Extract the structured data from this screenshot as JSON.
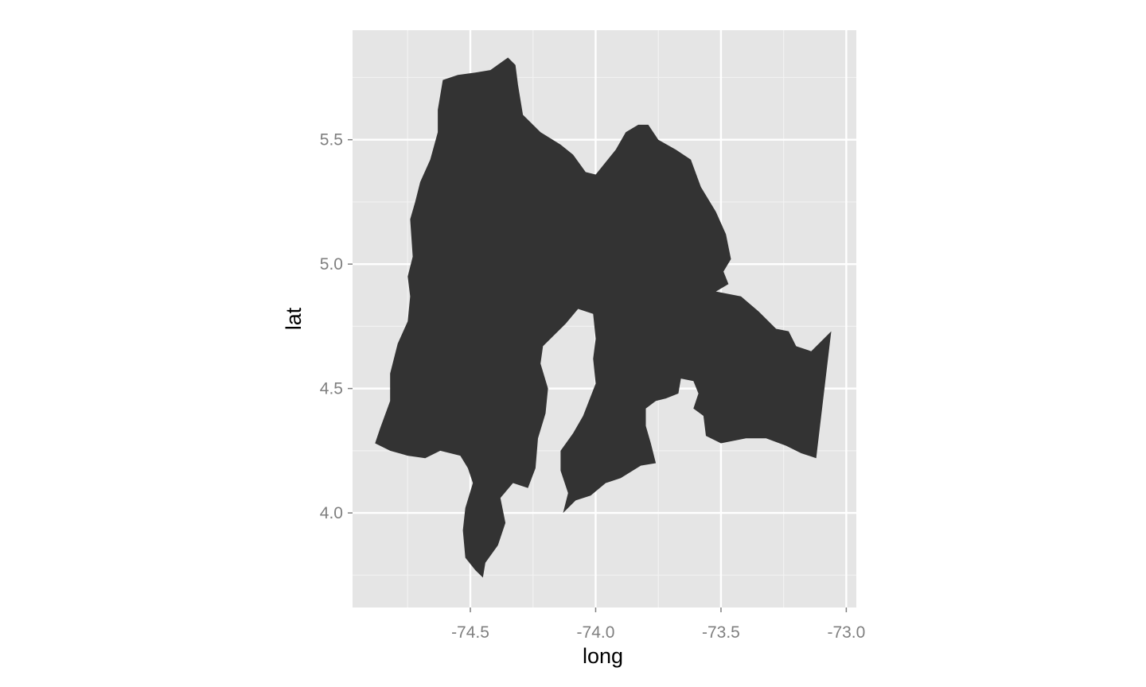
{
  "chart_data": {
    "type": "map",
    "xlabel": "long",
    "ylabel": "lat",
    "xlim": [
      -74.97,
      -72.96
    ],
    "ylim": [
      3.62,
      5.94
    ],
    "x_ticks": [
      {
        "value": -74.5,
        "label": "-74.5"
      },
      {
        "value": -74.0,
        "label": "-74.0"
      },
      {
        "value": -73.5,
        "label": "-73.5"
      },
      {
        "value": -73.0,
        "label": "-73.0"
      }
    ],
    "y_ticks": [
      {
        "value": 4.0,
        "label": "4.0"
      },
      {
        "value": 4.5,
        "label": "4.5"
      },
      {
        "value": 5.0,
        "label": "5.0"
      },
      {
        "value": 5.5,
        "label": "5.5"
      }
    ],
    "x_minor": [
      -74.75,
      -74.25,
      -73.75,
      -73.25
    ],
    "y_minor": [
      3.75,
      4.25,
      4.75,
      5.25,
      5.75
    ],
    "grid": true,
    "colors": {
      "panel": "#e5e5e5",
      "grid_major": "#ffffff",
      "grid_minor": "#f2f2f2",
      "fill": "#333333"
    },
    "region": {
      "polygon": [
        [
          -74.35,
          5.83
        ],
        [
          -74.32,
          5.8
        ],
        [
          -74.31,
          5.72
        ],
        [
          -74.29,
          5.6
        ],
        [
          -74.22,
          5.53
        ],
        [
          -74.14,
          5.48
        ],
        [
          -74.09,
          5.44
        ],
        [
          -74.04,
          5.37
        ],
        [
          -74.0,
          5.36
        ],
        [
          -73.96,
          5.41
        ],
        [
          -73.92,
          5.46
        ],
        [
          -73.88,
          5.53
        ],
        [
          -73.83,
          5.56
        ],
        [
          -73.79,
          5.56
        ],
        [
          -73.75,
          5.5
        ],
        [
          -73.68,
          5.46
        ],
        [
          -73.62,
          5.42
        ],
        [
          -73.58,
          5.31
        ],
        [
          -73.52,
          5.21
        ],
        [
          -73.48,
          5.12
        ],
        [
          -73.46,
          5.02
        ],
        [
          -73.49,
          4.97
        ],
        [
          -73.47,
          4.92
        ],
        [
          -73.52,
          4.89
        ],
        [
          -73.42,
          4.87
        ],
        [
          -73.35,
          4.81
        ],
        [
          -73.28,
          4.74
        ],
        [
          -73.23,
          4.73
        ],
        [
          -73.2,
          4.67
        ],
        [
          -73.14,
          4.65
        ],
        [
          -73.06,
          4.73
        ],
        [
          -73.12,
          4.22
        ],
        [
          -73.18,
          4.24
        ],
        [
          -73.24,
          4.27
        ],
        [
          -73.32,
          4.3
        ],
        [
          -73.4,
          4.3
        ],
        [
          -73.5,
          4.28
        ],
        [
          -73.56,
          4.31
        ],
        [
          -73.57,
          4.39
        ],
        [
          -73.61,
          4.42
        ],
        [
          -73.59,
          4.48
        ],
        [
          -73.61,
          4.53
        ],
        [
          -73.66,
          4.54
        ],
        [
          -73.67,
          4.48
        ],
        [
          -73.72,
          4.46
        ],
        [
          -73.76,
          4.45
        ],
        [
          -73.8,
          4.42
        ],
        [
          -73.8,
          4.35
        ],
        [
          -73.78,
          4.28
        ],
        [
          -73.76,
          4.2
        ],
        [
          -73.82,
          4.19
        ],
        [
          -73.9,
          4.14
        ],
        [
          -73.96,
          4.12
        ],
        [
          -74.02,
          4.07
        ],
        [
          -74.08,
          4.05
        ],
        [
          -74.13,
          4.0
        ],
        [
          -74.11,
          4.08
        ],
        [
          -74.14,
          4.17
        ],
        [
          -74.14,
          4.25
        ],
        [
          -74.09,
          4.32
        ],
        [
          -74.05,
          4.39
        ],
        [
          -74.0,
          4.52
        ],
        [
          -74.01,
          4.62
        ],
        [
          -74.0,
          4.7
        ],
        [
          -74.01,
          4.8
        ],
        [
          -74.07,
          4.82
        ],
        [
          -74.12,
          4.76
        ],
        [
          -74.21,
          4.67
        ],
        [
          -74.22,
          4.6
        ],
        [
          -74.19,
          4.5
        ],
        [
          -74.2,
          4.4
        ],
        [
          -74.23,
          4.3
        ],
        [
          -74.24,
          4.18
        ],
        [
          -74.27,
          4.1
        ],
        [
          -74.33,
          4.12
        ],
        [
          -74.38,
          4.06
        ],
        [
          -74.36,
          3.96
        ],
        [
          -74.39,
          3.87
        ],
        [
          -74.44,
          3.8
        ],
        [
          -74.45,
          3.74
        ],
        [
          -74.48,
          3.77
        ],
        [
          -74.52,
          3.82
        ],
        [
          -74.53,
          3.93
        ],
        [
          -74.52,
          4.02
        ],
        [
          -74.49,
          4.12
        ],
        [
          -74.51,
          4.18
        ],
        [
          -74.54,
          4.23
        ],
        [
          -74.62,
          4.25
        ],
        [
          -74.68,
          4.22
        ],
        [
          -74.75,
          4.23
        ],
        [
          -74.82,
          4.25
        ],
        [
          -74.88,
          4.28
        ],
        [
          -74.86,
          4.34
        ],
        [
          -74.82,
          4.45
        ],
        [
          -74.82,
          4.56
        ],
        [
          -74.79,
          4.68
        ],
        [
          -74.75,
          4.77
        ],
        [
          -74.74,
          4.87
        ],
        [
          -74.75,
          4.95
        ],
        [
          -74.73,
          5.03
        ],
        [
          -74.74,
          5.18
        ],
        [
          -74.72,
          5.25
        ],
        [
          -74.7,
          5.33
        ],
        [
          -74.66,
          5.42
        ],
        [
          -74.63,
          5.53
        ],
        [
          -74.63,
          5.62
        ],
        [
          -74.61,
          5.74
        ],
        [
          -74.55,
          5.76
        ],
        [
          -74.48,
          5.77
        ],
        [
          -74.42,
          5.78
        ]
      ]
    }
  }
}
